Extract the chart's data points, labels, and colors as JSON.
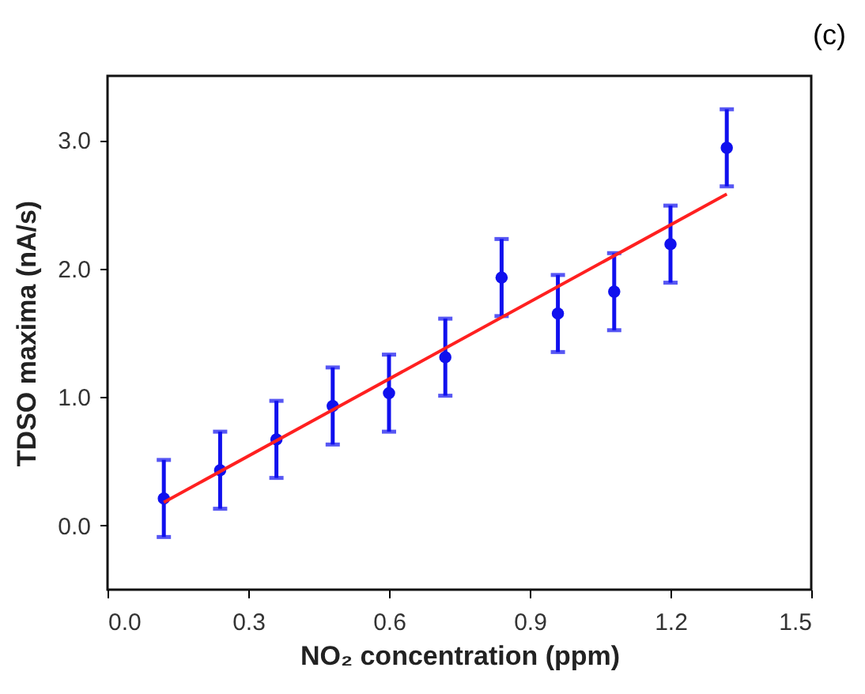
{
  "chart_data": {
    "type": "scatter",
    "xlabel": "NO₂ concentration (ppm)",
    "ylabel": "TDSO maxima (nA/s)",
    "annotations": [
      "(c)"
    ],
    "x": [
      0.12,
      0.24,
      0.36,
      0.48,
      0.6,
      0.72,
      0.84,
      0.96,
      1.08,
      1.2,
      1.32
    ],
    "series": [
      {
        "color": "#1010ee",
        "marker": "circle",
        "values": [
          0.21,
          0.43,
          0.67,
          0.93,
          1.03,
          1.31,
          1.93,
          1.65,
          1.82,
          2.19,
          2.94
        ],
        "errors": [
          0.3,
          0.3,
          0.3,
          0.3,
          0.3,
          0.3,
          0.3,
          0.3,
          0.3,
          0.3,
          0.3
        ]
      },
      {
        "type": "line",
        "color": "#ff2020",
        "line_style": "solid",
        "x": [
          0.12,
          1.32
        ],
        "values": [
          0.18,
          2.58
        ]
      }
    ],
    "xlim": [
      0,
      1.5
    ],
    "xticks": [
      {
        "value": 0,
        "label": "0.0"
      },
      0.3,
      0.6,
      0.9,
      1.2,
      1.5
    ],
    "ylim": [
      -0.5,
      3.5
    ],
    "yticks": [
      {
        "value": 0,
        "label": "0.0"
      },
      {
        "value": 1,
        "label": "1.0"
      },
      {
        "value": 2,
        "label": "2.0"
      },
      {
        "value": 3,
        "label": "3.0"
      }
    ],
    "grid": false
  }
}
